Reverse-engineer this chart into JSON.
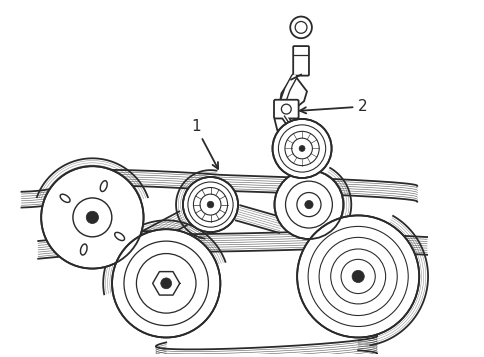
{
  "background_color": "#ffffff",
  "line_color": "#2a2a2a",
  "line_width": 1.3,
  "label_1": "1",
  "label_2": "2",
  "label_fontsize": 11,
  "figsize": [
    4.85,
    3.57
  ],
  "dpi": 100,
  "belt1_color": "#2a2a2a",
  "tensioner_color": "#2a2a2a"
}
